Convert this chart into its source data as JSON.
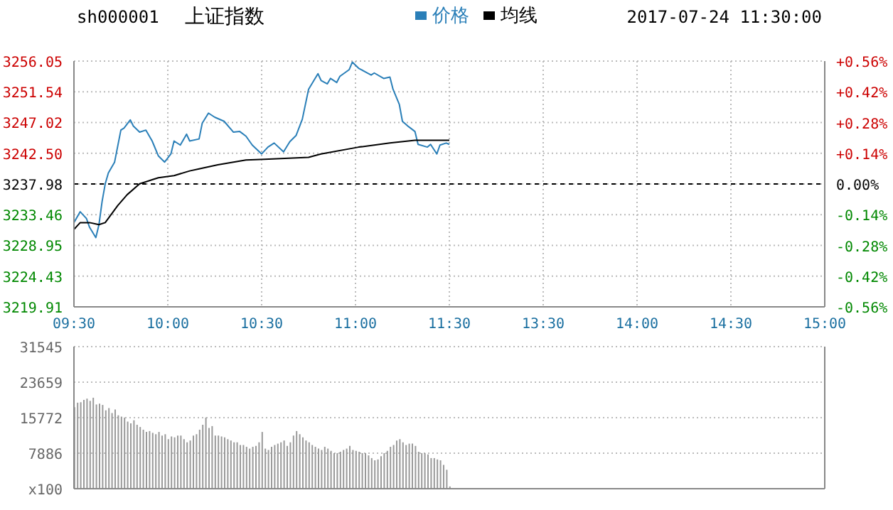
{
  "chart_data": [
    {
      "type": "line",
      "title": "上证指数",
      "subtitle": "sh000001",
      "annotations": [
        "2017-07-24 11:30:00"
      ],
      "legend": "top",
      "grid": true,
      "categories": [
        "09:30",
        null,
        null,
        null,
        null,
        null,
        null,
        null,
        null,
        null,
        null,
        null,
        null,
        null,
        null,
        null,
        null,
        null,
        null,
        null,
        null,
        null,
        null,
        null,
        null,
        null,
        null,
        null,
        null,
        null,
        "10:00",
        null,
        null,
        null,
        null,
        null,
        null,
        null,
        null,
        null,
        null,
        null,
        null,
        null,
        null,
        null,
        null,
        null,
        null,
        null,
        null,
        null,
        null,
        null,
        null,
        null,
        null,
        null,
        null,
        null,
        "10:30",
        null,
        null,
        null,
        null,
        null,
        null,
        null,
        null,
        null,
        null,
        null,
        null,
        null,
        null,
        null,
        null,
        null,
        null,
        null,
        null,
        null,
        null,
        null,
        null,
        null,
        null,
        null,
        null,
        null,
        "11:00",
        null,
        null,
        null,
        null,
        null,
        null,
        null,
        null,
        null,
        null,
        null,
        null,
        null,
        null,
        null,
        null,
        null,
        null,
        null,
        null,
        null,
        null,
        null,
        null,
        null,
        null,
        null,
        null,
        null,
        "11:30",
        null,
        null,
        null,
        null,
        null,
        null,
        null,
        null,
        null,
        null,
        null,
        null,
        null,
        null,
        null,
        null,
        null,
        null,
        null,
        null,
        null,
        null,
        null,
        null,
        null,
        null,
        null,
        null,
        null,
        "13:30",
        null,
        null,
        null,
        null,
        null,
        null,
        null,
        null,
        null,
        null,
        null,
        null,
        null,
        null,
        null,
        null,
        null,
        null,
        null,
        null,
        null,
        null,
        null,
        null,
        null,
        null,
        null,
        null,
        null,
        "14:00",
        null,
        null,
        null,
        null,
        null,
        null,
        null,
        null,
        null,
        null,
        null,
        null,
        null,
        null,
        null,
        null,
        null,
        null,
        null,
        null,
        null,
        null,
        null,
        null,
        null,
        null,
        null,
        null,
        null,
        "14:30",
        null,
        null,
        null,
        null,
        null,
        null,
        null,
        null,
        null,
        null,
        null,
        null,
        null,
        null,
        null,
        null,
        null,
        null,
        null,
        null,
        null,
        null,
        null,
        null,
        null,
        null,
        null,
        null,
        null,
        "15:00"
      ],
      "ylim": [
        3219.91,
        3256.05
      ],
      "yticks": [
        3219.91,
        3224.43,
        3228.95,
        3233.46,
        3237.98,
        {
          "value": 3242.5,
          "label": "3242.50"
        },
        3247.02,
        3251.54,
        3256.05
      ],
      "y2lim": [
        -0.56,
        0.56
      ],
      "y2ticks": [
        {
          "value": -0.56,
          "label": "-0.56%"
        },
        {
          "value": -0.42,
          "label": "-0.42%"
        },
        {
          "value": -0.28,
          "label": "-0.28%"
        },
        {
          "value": -0.14,
          "label": "-0.14%"
        },
        {
          "value": 0,
          "label": "0.00%"
        },
        {
          "value": 0.14,
          "label": "+0.14%"
        },
        {
          "value": 0.28,
          "label": "+0.28%"
        },
        {
          "value": 0.42,
          "label": "+0.42%"
        },
        {
          "value": 0.56,
          "label": "+0.56%"
        }
      ],
      "ref_lines": [
        {
          "axis": "y",
          "value": 3237.98,
          "color": "#000000",
          "line_style": "dashed"
        }
      ],
      "series": [
        {
          "name": "价格",
          "color": "#2a7fb8",
          "values": [
            3232.3,
            null,
            3233.9,
            null,
            3232.9,
            3231.6,
            null,
            3230.1,
            3232.0,
            3235.4,
            3238.0,
            3239.6,
            null,
            3241.2,
            null,
            3245.9,
            3246.2,
            null,
            3247.4,
            3246.5,
            null,
            3245.6,
            null,
            3245.9,
            null,
            3244.3,
            null,
            3242.1,
            null,
            3241.2,
            null,
            3242.4,
            3244.3,
            null,
            3243.7,
            null,
            3245.3,
            3244.3,
            null,
            null,
            3244.6,
            3246.9,
            null,
            3248.4,
            null,
            3247.8,
            null,
            null,
            3247.2,
            null,
            null,
            3245.6,
            null,
            3245.7,
            null,
            3245.0,
            null,
            3243.7,
            null,
            null,
            3242.4,
            null,
            3243.4,
            null,
            3244.0,
            null,
            null,
            3242.7,
            null,
            3244.2,
            null,
            3245.1,
            null,
            3247.5,
            null,
            3251.9,
            null,
            null,
            3254.2,
            3253.2,
            null,
            3252.7,
            3253.5,
            null,
            3252.9,
            3253.8,
            null,
            null,
            3254.8,
            3255.9,
            null,
            3255.0,
            null,
            3254.5,
            null,
            3254.0,
            3254.3,
            null,
            null,
            3253.5,
            null,
            3253.7,
            3251.9,
            null,
            3249.7,
            3247.2,
            null,
            3246.4,
            null,
            3245.7,
            3243.8,
            null,
            null,
            3243.4,
            3243.8,
            null,
            3242.4,
            3243.7,
            null,
            3244.0,
            3243.8,
            null,
            null,
            null,
            null,
            null,
            null,
            null,
            null,
            null,
            null,
            null,
            null,
            null,
            null,
            null,
            null,
            null,
            null,
            null,
            null,
            null,
            null,
            null,
            null,
            null,
            null,
            null,
            null,
            null,
            null,
            null,
            null,
            null,
            null,
            null,
            null,
            null,
            null,
            null,
            null,
            null,
            null,
            null,
            null,
            null,
            null,
            null,
            null,
            null,
            null,
            null,
            null,
            null,
            null,
            null,
            null,
            null,
            null,
            null,
            null,
            null,
            null,
            null,
            null,
            null,
            null,
            null,
            null,
            null,
            null,
            null,
            null,
            null,
            null,
            null,
            null,
            null,
            null,
            null,
            null,
            null,
            null,
            null,
            null,
            null,
            null,
            null,
            null,
            null,
            null,
            null,
            null,
            null,
            null,
            null,
            null,
            null,
            null,
            null,
            null,
            null,
            null,
            null,
            null,
            null,
            null,
            null,
            null,
            null,
            null,
            null,
            null,
            null,
            null,
            null,
            null,
            null,
            null,
            null,
            null
          ]
        },
        {
          "name": "均线",
          "color": "#000000",
          "values": [
            3231.3,
            null,
            3232.3,
            null,
            null,
            3232.3,
            null,
            null,
            3232.0,
            null,
            3232.3,
            null,
            null,
            null,
            3234.8,
            null,
            null,
            3236.4,
            null,
            null,
            null,
            3238.0,
            null,
            null,
            null,
            3238.6,
            null,
            3238.9,
            null,
            null,
            null,
            null,
            3239.2,
            null,
            null,
            null,
            null,
            3239.9,
            null,
            null,
            3240.2,
            null,
            null,
            null,
            null,
            null,
            3240.8,
            null,
            null,
            null,
            null,
            null,
            null,
            null,
            null,
            3241.5,
            null,
            null,
            null,
            null,
            null,
            3241.6,
            null,
            null,
            null,
            null,
            null,
            null,
            null,
            null,
            null,
            null,
            null,
            null,
            null,
            3241.9,
            null,
            null,
            null,
            3242.4,
            null,
            null,
            null,
            null,
            null,
            null,
            null,
            null,
            null,
            null,
            null,
            3243.4,
            null,
            null,
            null,
            null,
            null,
            null,
            null,
            null,
            null,
            3244.0,
            null,
            null,
            null,
            null,
            null,
            null,
            null,
            3244.4,
            null,
            null,
            null,
            null,
            null,
            null,
            null,
            null,
            null,
            null,
            3244.4,
            null,
            null,
            null,
            null,
            null,
            null,
            null,
            null,
            null,
            null,
            null,
            null,
            null,
            null,
            null,
            null,
            null,
            null,
            null,
            null,
            null,
            null,
            null,
            null,
            null,
            null,
            null,
            null,
            null,
            null,
            null,
            null,
            null,
            null,
            null,
            null,
            null,
            null,
            null,
            null,
            null,
            null,
            null,
            null,
            null,
            null,
            null,
            null,
            null,
            null,
            null,
            null,
            null,
            null,
            null,
            null,
            null,
            null,
            null,
            null,
            null,
            null,
            null,
            null,
            null,
            null,
            null,
            null,
            null,
            null,
            null,
            null,
            null,
            null,
            null,
            null,
            null,
            null,
            null,
            null,
            null,
            null,
            null,
            null,
            null,
            null,
            null,
            null,
            null,
            null,
            null,
            null,
            null,
            null,
            null,
            null,
            null,
            null,
            null,
            null,
            null,
            null,
            null,
            null,
            null,
            null,
            null,
            null,
            null,
            null,
            null,
            null,
            null,
            null,
            null,
            null,
            null,
            null,
            null,
            null
          ]
        }
      ]
    },
    {
      "type": "bar",
      "grid": true,
      "tick_labels": "y",
      "categories": [
        null,
        null,
        null,
        null,
        null,
        null,
        null,
        null,
        null,
        null,
        null,
        null,
        null,
        null,
        null,
        null,
        null,
        null,
        null,
        null,
        null,
        null,
        null,
        null,
        null,
        null,
        null,
        null,
        null,
        null,
        null,
        null,
        null,
        null,
        null,
        null,
        null,
        null,
        null,
        null,
        null,
        null,
        null,
        null,
        null,
        null,
        null,
        null,
        null,
        null,
        null,
        null,
        null,
        null,
        null,
        null,
        null,
        null,
        null,
        null,
        null,
        null,
        null,
        null,
        null,
        null,
        null,
        null,
        null,
        null,
        null,
        null,
        null,
        null,
        null,
        null,
        null,
        null,
        null,
        null,
        null,
        null,
        null,
        null,
        null,
        null,
        null,
        null,
        null,
        null,
        null,
        null,
        null,
        null,
        null,
        null,
        null,
        null,
        null,
        null,
        null,
        null,
        null,
        null,
        null,
        null,
        null,
        null,
        null,
        null,
        null,
        null,
        null,
        null,
        null,
        null,
        null,
        null,
        null,
        null,
        null,
        null,
        null,
        null,
        null,
        null,
        null,
        null,
        null,
        null,
        null,
        null,
        null,
        null,
        null,
        null,
        null,
        null,
        null,
        null,
        null,
        null,
        null,
        null,
        null,
        null,
        null,
        null,
        null,
        null,
        null,
        null,
        null,
        null,
        null,
        null,
        null,
        null,
        null,
        null,
        null,
        null,
        null,
        null,
        null,
        null,
        null,
        null,
        null,
        null,
        null,
        null,
        null,
        null,
        null,
        null,
        null,
        null,
        null,
        null,
        null,
        null,
        null,
        null,
        null,
        null,
        null,
        null,
        null,
        null,
        null,
        null,
        null,
        null,
        null,
        null,
        null,
        null,
        null,
        null,
        null,
        null,
        null,
        null,
        null,
        null,
        null,
        null,
        null,
        null,
        null,
        null,
        null,
        null,
        null,
        null,
        null,
        null,
        null,
        null,
        null,
        null,
        null,
        null,
        null,
        null,
        null,
        null,
        null,
        null,
        null,
        null,
        null,
        null,
        null,
        null,
        null,
        null,
        null,
        null,
        null
      ],
      "ylim": [
        0,
        31545
      ],
      "yticks": [
        {
          "value": 0,
          "label": "x100"
        },
        7886,
        15772,
        23659,
        31545
      ],
      "series": [
        {
          "color": "#999999",
          "values": [
            18100,
            19100,
            19200,
            19700,
            20000,
            19500,
            20200,
            18700,
            18900,
            18600,
            17400,
            17900,
            16800,
            17600,
            16300,
            16000,
            15800,
            14900,
            14500,
            15200,
            14200,
            13700,
            13100,
            12600,
            12800,
            12400,
            12100,
            12600,
            11800,
            12100,
            11000,
            11600,
            11400,
            11800,
            11800,
            11000,
            10300,
            10700,
            11800,
            12100,
            13100,
            14200,
            15800,
            13500,
            13900,
            11800,
            11800,
            11600,
            11400,
            11000,
            10700,
            10300,
            10300,
            9700,
            9700,
            9300,
            8900,
            9300,
            9500,
            10300,
            12600,
            8900,
            8600,
            9300,
            9700,
            10000,
            10300,
            10700,
            9500,
            10300,
            11800,
            12800,
            12100,
            11400,
            10700,
            10300,
            9700,
            9300,
            8900,
            8600,
            9300,
            8900,
            8400,
            7900,
            7900,
            8200,
            8600,
            8900,
            9500,
            8600,
            8400,
            8200,
            7900,
            7900,
            7400,
            6800,
            6300,
            6500,
            7200,
            7900,
            8400,
            9300,
            9700,
            10700,
            11000,
            10300,
            9700,
            10000,
            10000,
            9500,
            8200,
            7900,
            7900,
            7600,
            6800,
            6800,
            6500,
            6300,
            5300,
            4200,
            500,
            null,
            null,
            null,
            null,
            null,
            null,
            null,
            null,
            null,
            null,
            null,
            null,
            null,
            null,
            null,
            null,
            null,
            null,
            null,
            null,
            null,
            null,
            null,
            null,
            null,
            null,
            null,
            null,
            null,
            null,
            null,
            null,
            null,
            null,
            null,
            null,
            null,
            null,
            null,
            null,
            null,
            null,
            null,
            null,
            null,
            null,
            null,
            null,
            null,
            null,
            null,
            null,
            null,
            null,
            null,
            null,
            null,
            null,
            null,
            null,
            null,
            null,
            null,
            null,
            null,
            null,
            null,
            null,
            null,
            null,
            null,
            null,
            null,
            null,
            null,
            null,
            null,
            null,
            null,
            null,
            null,
            null,
            null,
            null,
            null,
            null,
            null,
            null,
            null,
            null,
            null,
            null,
            null,
            null,
            null,
            null,
            null,
            null,
            null,
            null,
            null,
            null,
            null,
            null,
            null,
            null,
            null,
            null,
            null,
            null,
            null,
            null,
            null,
            null,
            null,
            null,
            null,
            null,
            null,
            null
          ]
        }
      ]
    }
  ]
}
